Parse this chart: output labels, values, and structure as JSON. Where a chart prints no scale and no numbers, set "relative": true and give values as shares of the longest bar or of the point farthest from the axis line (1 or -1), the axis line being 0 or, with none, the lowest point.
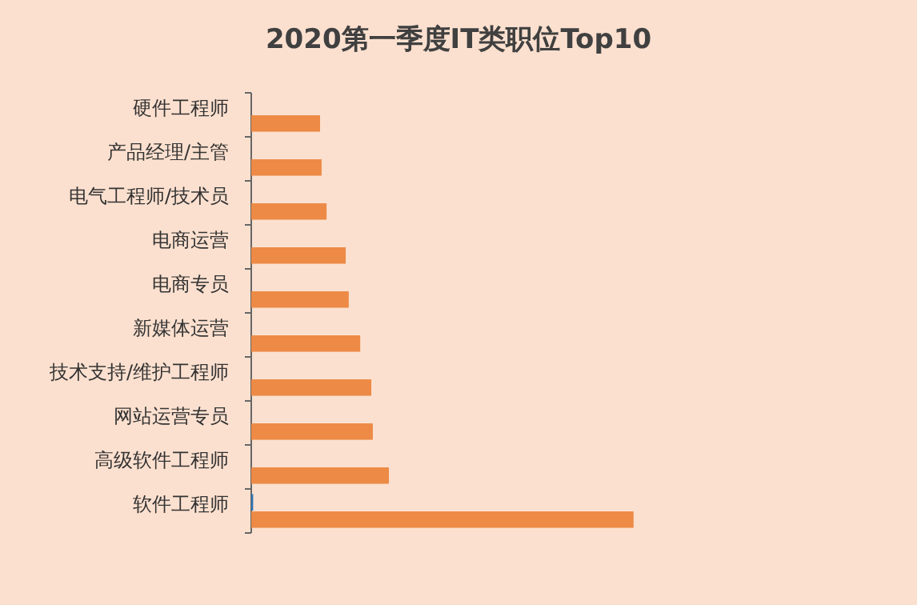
{
  "chart_data": {
    "type": "bar",
    "orientation": "horizontal",
    "relative": true,
    "title": "2020第一季度IT类职位Top10",
    "categories": [
      "硬件工程师",
      "产品经理/主管",
      "电气工程师/技术员",
      "电商运营",
      "电商专员",
      "新媒体运营",
      "技术支持/维护工程师",
      "网站运营专员",
      "高级软件工程师",
      "软件工程师"
    ],
    "series": [
      {
        "color": "#2e75b6",
        "values": [
          0,
          0,
          0,
          0,
          0,
          0,
          0,
          0,
          0,
          0.005
        ]
      },
      {
        "color": "#ed8a45",
        "values": [
          0.18,
          0.184,
          0.197,
          0.247,
          0.255,
          0.285,
          0.314,
          0.318,
          0.36,
          1
        ]
      }
    ]
  }
}
